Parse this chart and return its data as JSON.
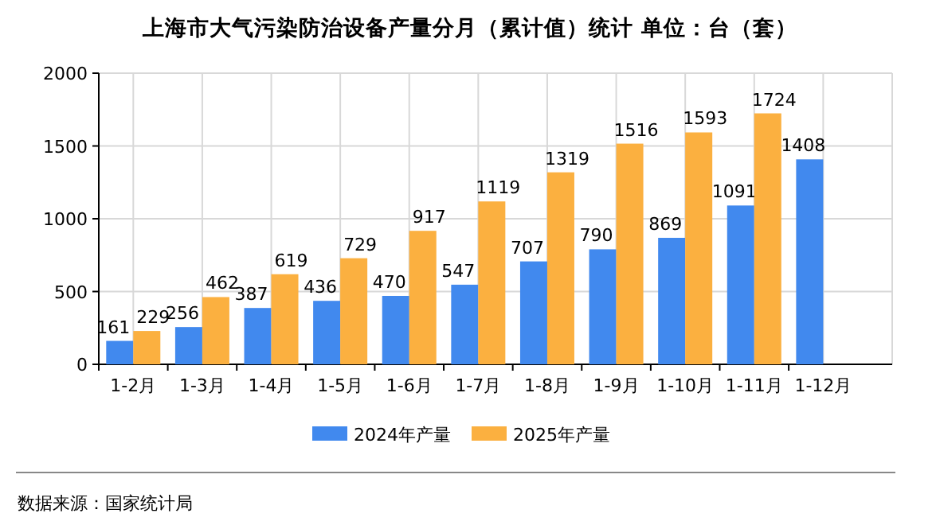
{
  "chart_data": {
    "type": "bar",
    "title": "上海市大气污染防治设备产量分月（累计值）统计  单位：台（套）",
    "categories": [
      "1-2月",
      "1-3月",
      "1-4月",
      "1-5月",
      "1-6月",
      "1-7月",
      "1-8月",
      "1-9月",
      "1-10月",
      "1-11月",
      "1-12月"
    ],
    "series": [
      {
        "name": "2024年产量",
        "color": "#4189ee",
        "values": [
          161,
          256,
          387,
          436,
          470,
          547,
          707,
          790,
          869,
          1091,
          1408
        ]
      },
      {
        "name": "2025年产量",
        "color": "#fbb040",
        "values": [
          229,
          462,
          619,
          729,
          917,
          1119,
          1319,
          1516,
          1593,
          1724,
          null
        ]
      }
    ],
    "ylim": [
      0,
      2000
    ],
    "yticks": [
      0,
      500,
      1000,
      1500,
      2000
    ],
    "grid": true,
    "legend": "bottom",
    "data_labels": true,
    "annotations": [
      "数据来源：国家统计局"
    ]
  }
}
